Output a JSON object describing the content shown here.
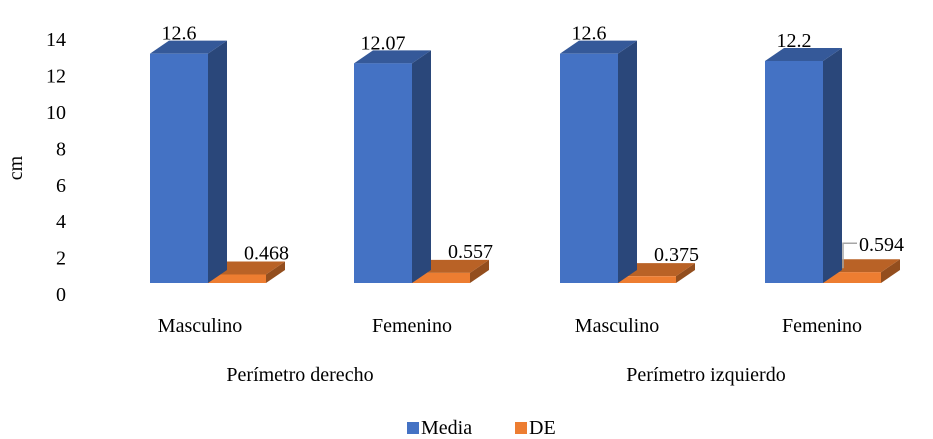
{
  "chart_data": {
    "type": "bar",
    "style": "3d-clustered-column",
    "ylabel": "cm",
    "ylim": [
      0,
      14
    ],
    "yticks": [
      0,
      2,
      4,
      6,
      8,
      10,
      12,
      14
    ],
    "grid": false,
    "groups": [
      {
        "label": "Perímetro derecho",
        "categories": [
          "Masculino",
          "Femenino"
        ]
      },
      {
        "label": "Perímetro izquierdo",
        "categories": [
          "Masculino",
          "Femenino"
        ]
      }
    ],
    "categories": [
      "Masculino",
      "Femenino",
      "Masculino",
      "Femenino"
    ],
    "series": [
      {
        "name": "Media",
        "color": "#4472C4",
        "values": [
          12.6,
          12.07,
          12.6,
          12.2
        ],
        "labels": [
          "12.6",
          "12.07",
          "12.6",
          "12.2"
        ]
      },
      {
        "name": "DE",
        "color": "#ED7D31",
        "values": [
          0.468,
          0.557,
          0.375,
          0.594
        ],
        "labels": [
          "0.468",
          "0.557",
          "0.375",
          "0.594"
        ]
      }
    ],
    "legend_position": "bottom"
  }
}
